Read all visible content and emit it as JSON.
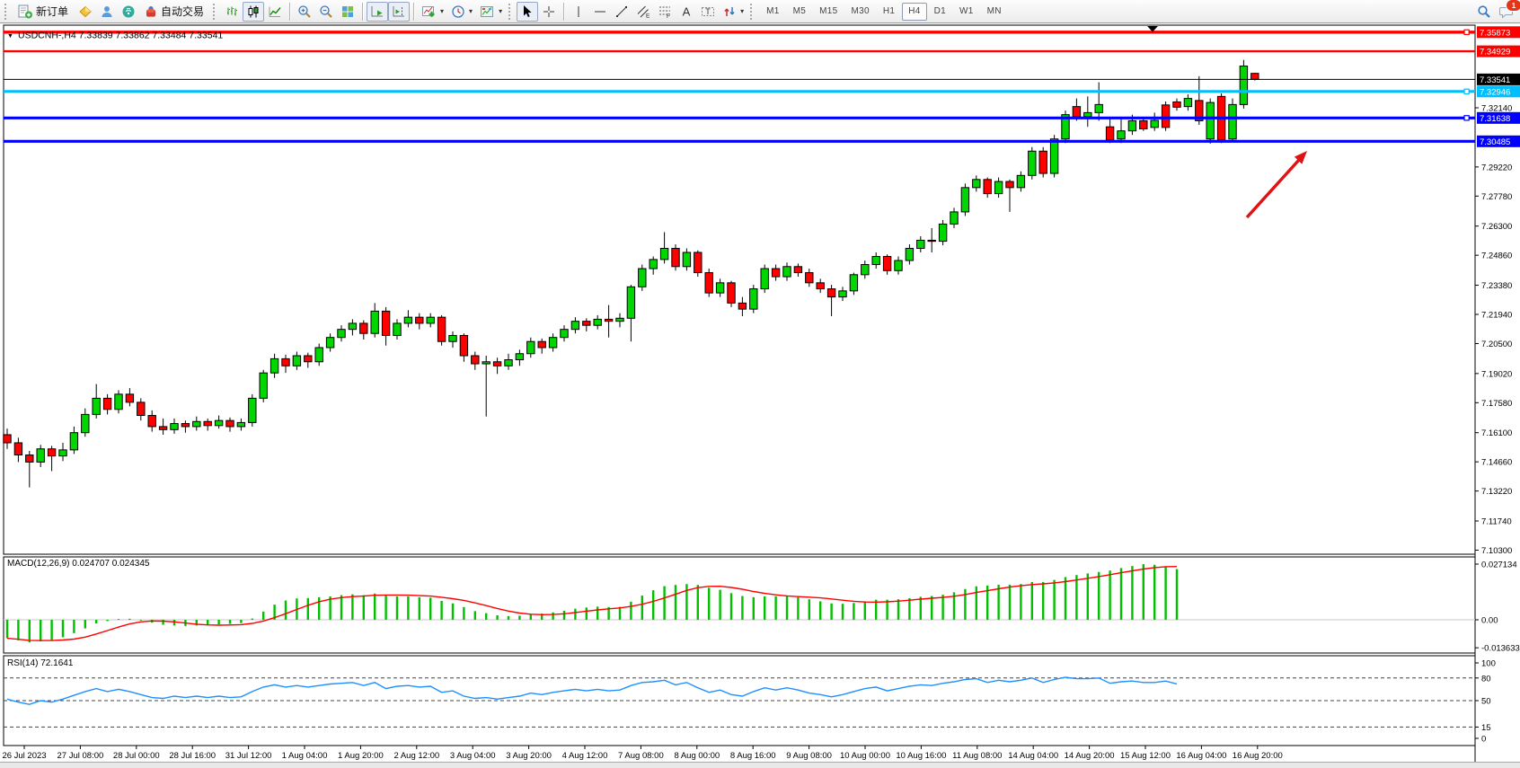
{
  "toolbar": {
    "new_order_label": "新订单",
    "autotrade_label": "自动交易",
    "timeframes": [
      "M1",
      "M5",
      "M15",
      "M30",
      "H1",
      "H4",
      "D1",
      "W1",
      "MN"
    ],
    "active_timeframe": "H4",
    "notification_badge": "1",
    "icons": [
      "new-order-icon",
      "market-icon",
      "community-icon",
      "signals-icon",
      "autotrading-icon",
      "bar-chart-icon",
      "candlestick-chart-icon",
      "line-chart-icon",
      "zoom-in-icon",
      "zoom-out-icon",
      "tile-windows-icon",
      "auto-scroll-icon",
      "chart-shift-icon",
      "indicators-icon",
      "periods-icon",
      "templates-icon",
      "cursor-icon",
      "crosshair-icon",
      "vertical-line-icon",
      "horizontal-line-icon",
      "trendline-icon",
      "equidistant-channel-icon",
      "fibonacci-icon",
      "text-icon",
      "text-label-icon",
      "arrows-icon",
      "search-icon",
      "chat-icon"
    ]
  },
  "chart": {
    "title_symbol": "USDCNH-,H4",
    "title_ohlc": "7.33839 7.33862 7.33484 7.33541",
    "current_price": {
      "label": "7.33541",
      "price": 7.33541
    },
    "hlines": [
      {
        "label": "7.35873",
        "price": 7.35873,
        "color": "#FF0000",
        "thickness": 3.4,
        "handle": true
      },
      {
        "label": "7.34929",
        "price": 7.34929,
        "color": "#FF0000",
        "thickness": 2.4,
        "handle": false
      },
      {
        "label": "7.32946",
        "price": 7.32946,
        "color": "#00BFFF",
        "thickness": 3.2,
        "handle": true
      },
      {
        "label": "7.31638",
        "price": 7.31638,
        "color": "#0000FF",
        "thickness": 3.2,
        "handle": true
      },
      {
        "label": "7.30485",
        "price": 7.30485,
        "color": "#0000FF",
        "thickness": 3.2,
        "handle": false
      }
    ],
    "arrow_color": "#E01212",
    "colors": {
      "up": "#00D600",
      "down": "#FF0000",
      "wick": "#000000",
      "bg": "#FFFFFF",
      "macd_hist": "#00C000",
      "macd_signal": "#FF0000",
      "rsi_line": "#1E90FF",
      "axis_text": "#000000",
      "current_line": "#000000"
    }
  },
  "indicators": {
    "macd": {
      "name": "MACD(12,26,9)",
      "values_text": "0.024707 0.024345",
      "axis_labels": [
        "0.027134",
        "0.00",
        "-0.013633"
      ]
    },
    "rsi": {
      "name": "RSI(14)",
      "value_text": "72.1641",
      "axis_labels": [
        "100",
        "80",
        "50",
        "15",
        "0"
      ],
      "levels": [
        80,
        50,
        15
      ]
    }
  },
  "chart_data": {
    "type": "candlestick",
    "title": "USDCNH-,H4",
    "ylabel": "price",
    "ylim": [
      7.103,
      7.3635
    ],
    "grid": false,
    "price_ticks": [
      "7.32140",
      "7.29220",
      "7.27780",
      "7.26300",
      "7.24860",
      "7.23380",
      "7.21940",
      "7.20500",
      "7.19020",
      "7.17580",
      "7.16100",
      "7.14660",
      "7.13220",
      "7.11740",
      "7.10300"
    ],
    "time_labels": [
      "26 Jul 2023",
      "27 Jul 08:00",
      "28 Jul 00:00",
      "28 Jul 16:00",
      "31 Jul 12:00",
      "1 Aug 04:00",
      "1 Aug 20:00",
      "2 Aug 12:00",
      "3 Aug 04:00",
      "3 Aug 20:00",
      "4 Aug 12:00",
      "7 Aug 08:00",
      "8 Aug 00:00",
      "8 Aug 16:00",
      "9 Aug 08:00",
      "10 Aug 00:00",
      "10 Aug 16:00",
      "11 Aug 08:00",
      "14 Aug 04:00",
      "14 Aug 20:00",
      "15 Aug 12:00",
      "16 Aug 04:00",
      "16 Aug 20:00"
    ],
    "candles": [
      [
        7.16,
        7.163,
        7.153,
        7.156
      ],
      [
        7.156,
        7.1585,
        7.1465,
        7.15
      ],
      [
        7.15,
        7.152,
        7.134,
        7.1465
      ],
      [
        7.1465,
        7.155,
        7.144,
        7.153
      ],
      [
        7.153,
        7.1545,
        7.142,
        7.1495
      ],
      [
        7.1495,
        7.156,
        7.147,
        7.1525
      ],
      [
        7.1525,
        7.164,
        7.1505,
        7.161
      ],
      [
        7.161,
        7.173,
        7.159,
        7.17
      ],
      [
        7.17,
        7.185,
        7.168,
        7.178
      ],
      [
        7.178,
        7.18,
        7.17,
        7.1725
      ],
      [
        7.1725,
        7.182,
        7.1705,
        7.18
      ],
      [
        7.18,
        7.183,
        7.174,
        7.176
      ],
      [
        7.176,
        7.178,
        7.167,
        7.1695
      ],
      [
        7.1695,
        7.172,
        7.1615,
        7.164
      ],
      [
        7.164,
        7.168,
        7.16,
        7.1625
      ],
      [
        7.1625,
        7.168,
        7.1605,
        7.1655
      ],
      [
        7.1655,
        7.167,
        7.161,
        7.164
      ],
      [
        7.164,
        7.169,
        7.162,
        7.1665
      ],
      [
        7.1665,
        7.168,
        7.162,
        7.1645
      ],
      [
        7.1645,
        7.1695,
        7.163,
        7.167
      ],
      [
        7.167,
        7.1685,
        7.1615,
        7.164
      ],
      [
        7.164,
        7.168,
        7.162,
        7.166
      ],
      [
        7.166,
        7.18,
        7.164,
        7.178
      ],
      [
        7.178,
        7.192,
        7.176,
        7.1905
      ],
      [
        7.1905,
        7.2,
        7.188,
        7.1975
      ],
      [
        7.1975,
        7.1995,
        7.1905,
        7.194
      ],
      [
        7.194,
        7.201,
        7.192,
        7.199
      ],
      [
        7.199,
        7.2005,
        7.193,
        7.196
      ],
      [
        7.196,
        7.205,
        7.194,
        7.203
      ],
      [
        7.203,
        7.21,
        7.201,
        7.208
      ],
      [
        7.208,
        7.214,
        7.206,
        7.212
      ],
      [
        7.212,
        7.217,
        7.209,
        7.215
      ],
      [
        7.215,
        7.2165,
        7.207,
        7.21
      ],
      [
        7.21,
        7.225,
        7.208,
        7.221
      ],
      [
        7.221,
        7.223,
        7.204,
        7.209
      ],
      [
        7.209,
        7.217,
        7.207,
        7.215
      ],
      [
        7.215,
        7.2215,
        7.213,
        7.218
      ],
      [
        7.218,
        7.22,
        7.212,
        7.215
      ],
      [
        7.215,
        7.22,
        7.213,
        7.218
      ],
      [
        7.218,
        7.219,
        7.204,
        7.206
      ],
      [
        7.206,
        7.211,
        7.203,
        7.209
      ],
      [
        7.209,
        7.21,
        7.196,
        7.199
      ],
      [
        7.199,
        7.201,
        7.192,
        7.195
      ],
      [
        7.195,
        7.199,
        7.169,
        7.196
      ],
      [
        7.196,
        7.198,
        7.19,
        7.194
      ],
      [
        7.194,
        7.2,
        7.192,
        7.197
      ],
      [
        7.197,
        7.202,
        7.194,
        7.2
      ],
      [
        7.2,
        7.208,
        7.198,
        7.206
      ],
      [
        7.206,
        7.2075,
        7.2,
        7.203
      ],
      [
        7.203,
        7.21,
        7.201,
        7.208
      ],
      [
        7.208,
        7.214,
        7.206,
        7.212
      ],
      [
        7.212,
        7.218,
        7.21,
        7.216
      ],
      [
        7.216,
        7.2175,
        7.211,
        7.214
      ],
      [
        7.214,
        7.219,
        7.212,
        7.217
      ],
      [
        7.217,
        7.224,
        7.208,
        7.216
      ],
      [
        7.216,
        7.22,
        7.213,
        7.2175
      ],
      [
        7.2175,
        7.234,
        7.206,
        7.233
      ],
      [
        7.233,
        7.244,
        7.231,
        7.242
      ],
      [
        7.242,
        7.248,
        7.239,
        7.2465
      ],
      [
        7.2465,
        7.26,
        7.2445,
        7.252
      ],
      [
        7.252,
        7.254,
        7.241,
        7.243
      ],
      [
        7.243,
        7.252,
        7.241,
        7.25
      ],
      [
        7.25,
        7.251,
        7.238,
        7.24
      ],
      [
        7.24,
        7.242,
        7.228,
        7.23
      ],
      [
        7.23,
        7.237,
        7.228,
        7.235
      ],
      [
        7.235,
        7.236,
        7.223,
        7.225
      ],
      [
        7.225,
        7.228,
        7.2185,
        7.222
      ],
      [
        7.222,
        7.234,
        7.22,
        7.232
      ],
      [
        7.232,
        7.244,
        7.23,
        7.242
      ],
      [
        7.242,
        7.244,
        7.236,
        7.238
      ],
      [
        7.238,
        7.245,
        7.236,
        7.243
      ],
      [
        7.243,
        7.2445,
        7.238,
        7.24
      ],
      [
        7.24,
        7.242,
        7.233,
        7.235
      ],
      [
        7.235,
        7.237,
        7.23,
        7.232
      ],
      [
        7.232,
        7.234,
        7.2185,
        7.228
      ],
      [
        7.228,
        7.233,
        7.226,
        7.231
      ],
      [
        7.231,
        7.24,
        7.229,
        7.239
      ],
      [
        7.239,
        7.246,
        7.237,
        7.244
      ],
      [
        7.244,
        7.25,
        7.242,
        7.248
      ],
      [
        7.248,
        7.249,
        7.239,
        7.241
      ],
      [
        7.241,
        7.248,
        7.239,
        7.246
      ],
      [
        7.246,
        7.254,
        7.244,
        7.252
      ],
      [
        7.252,
        7.258,
        7.25,
        7.256
      ],
      [
        7.256,
        7.262,
        7.25,
        7.2555
      ],
      [
        7.2555,
        7.266,
        7.2535,
        7.264
      ],
      [
        7.264,
        7.272,
        7.262,
        7.27
      ],
      [
        7.27,
        7.284,
        7.268,
        7.282
      ],
      [
        7.282,
        7.288,
        7.28,
        7.286
      ],
      [
        7.286,
        7.287,
        7.277,
        7.279
      ],
      [
        7.279,
        7.287,
        7.277,
        7.285
      ],
      [
        7.285,
        7.286,
        7.27,
        7.282
      ],
      [
        7.282,
        7.29,
        7.28,
        7.288
      ],
      [
        7.288,
        7.302,
        7.286,
        7.3
      ],
      [
        7.3,
        7.302,
        7.287,
        7.289
      ],
      [
        7.289,
        7.308,
        7.287,
        7.306
      ],
      [
        7.306,
        7.32,
        7.304,
        7.318
      ],
      [
        7.322,
        7.326,
        7.315,
        7.317
      ],
      [
        7.317,
        7.327,
        7.312,
        7.319
      ],
      [
        7.319,
        7.334,
        7.315,
        7.323
      ],
      [
        7.312,
        7.316,
        7.304,
        7.3055
      ],
      [
        7.306,
        7.316,
        7.304,
        7.31
      ],
      [
        7.31,
        7.318,
        7.308,
        7.315
      ],
      [
        7.315,
        7.317,
        7.31,
        7.311
      ],
      [
        7.3117,
        7.319,
        7.31,
        7.3152
      ],
      [
        7.3228,
        7.3245,
        7.31,
        7.3117
      ],
      [
        7.3243,
        7.326,
        7.32,
        7.3217
      ],
      [
        7.322,
        7.328,
        7.32,
        7.326
      ],
      [
        7.325,
        7.337,
        7.313,
        7.315
      ],
      [
        7.306,
        7.326,
        7.3037,
        7.324
      ],
      [
        7.327,
        7.3285,
        7.304,
        7.3055
      ],
      [
        7.306,
        7.326,
        7.305,
        7.323
      ],
      [
        7.323,
        7.345,
        7.321,
        7.342
      ],
      [
        7.33839,
        7.33862,
        7.33484,
        7.33541
      ]
    ],
    "macd_hist": [
      -0.009,
      -0.01,
      -0.011,
      -0.0105,
      -0.01,
      -0.0085,
      -0.0065,
      -0.0042,
      -0.0018,
      -0.0006,
      0.0004,
      0.0005,
      -0.0004,
      -0.0014,
      -0.0024,
      -0.0028,
      -0.003,
      -0.0028,
      -0.0025,
      -0.0022,
      -0.002,
      -0.0016,
      0.0006,
      0.004,
      0.0074,
      0.0094,
      0.0104,
      0.0106,
      0.011,
      0.0114,
      0.012,
      0.0124,
      0.012,
      0.0128,
      0.012,
      0.0114,
      0.0114,
      0.011,
      0.0108,
      0.0092,
      0.008,
      0.0062,
      0.0042,
      0.0032,
      0.0022,
      0.0018,
      0.002,
      0.0028,
      0.003,
      0.0036,
      0.0044,
      0.0054,
      0.006,
      0.0064,
      0.0062,
      0.0063,
      0.0088,
      0.0118,
      0.0144,
      0.0164,
      0.017,
      0.0174,
      0.017,
      0.0156,
      0.0146,
      0.013,
      0.0116,
      0.011,
      0.0114,
      0.0114,
      0.0114,
      0.011,
      0.01,
      0.009,
      0.008,
      0.0078,
      0.0082,
      0.009,
      0.0098,
      0.0098,
      0.01,
      0.0105,
      0.0112,
      0.0116,
      0.0122,
      0.0134,
      0.015,
      0.0163,
      0.0167,
      0.0171,
      0.0171,
      0.0174,
      0.0184,
      0.0184,
      0.0194,
      0.0208,
      0.0218,
      0.0226,
      0.0233,
      0.024,
      0.0252,
      0.0262,
      0.0271,
      0.0268,
      0.0258,
      0.024707
    ],
    "macd_current": {
      "main": 0.024707,
      "signal": 0.024345
    },
    "rsi": [
      52,
      48,
      45,
      50,
      48,
      52,
      57,
      62,
      66,
      62,
      65,
      62,
      58,
      54,
      53,
      56,
      54,
      56,
      54,
      56,
      54,
      55,
      62,
      68,
      71,
      68,
      70,
      68,
      70,
      72,
      73,
      74,
      70,
      74,
      66,
      69,
      70,
      68,
      69,
      61,
      63,
      56,
      53,
      54,
      52,
      54,
      56,
      60,
      58,
      61,
      63,
      65,
      63,
      65,
      63,
      64,
      70,
      74,
      75,
      77,
      71,
      74,
      67,
      61,
      64,
      58,
      56,
      62,
      67,
      64,
      67,
      64,
      60,
      58,
      55,
      58,
      62,
      66,
      68,
      63,
      66,
      69,
      71,
      70,
      73,
      75,
      78,
      79,
      74,
      77,
      75,
      77,
      80,
      74,
      78,
      81,
      79,
      79,
      80,
      73,
      75,
      76,
      74,
      74,
      76,
      72.16
    ],
    "rsi_current": 72.1641,
    "rsi_levels": [
      100,
      80,
      50,
      15,
      0
    ]
  }
}
